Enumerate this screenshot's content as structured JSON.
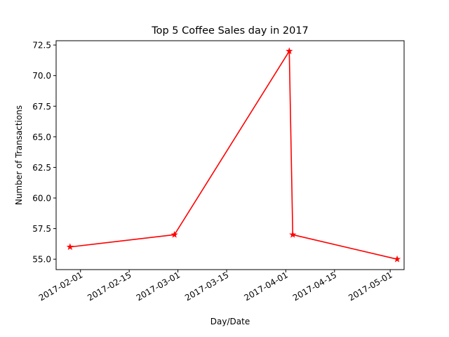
{
  "chart_data": {
    "type": "line",
    "title": "Top 5 Coffee Sales day in 2017",
    "xlabel": "Day/Date",
    "ylabel": "Number of Transactions",
    "x_type": "date",
    "xlim": [
      "2017-01-25",
      "2017-05-05"
    ],
    "ylim": [
      54.15,
      72.85
    ],
    "x_ticks": [
      "2017-02-01",
      "2017-02-15",
      "2017-03-01",
      "2017-03-15",
      "2017-04-01",
      "2017-04-15",
      "2017-05-01"
    ],
    "y_ticks": [
      55.0,
      57.5,
      60.0,
      62.5,
      65.0,
      67.5,
      70.0,
      72.5
    ],
    "grid": false,
    "series": [
      {
        "color": "#ff0000",
        "marker": "star",
        "points": [
          {
            "x": "2017-01-29",
            "y": 56
          },
          {
            "x": "2017-02-28",
            "y": 57
          },
          {
            "x": "2017-04-02",
            "y": 72
          },
          {
            "x": "2017-04-03",
            "y": 57
          },
          {
            "x": "2017-05-03",
            "y": 55
          }
        ]
      }
    ]
  }
}
